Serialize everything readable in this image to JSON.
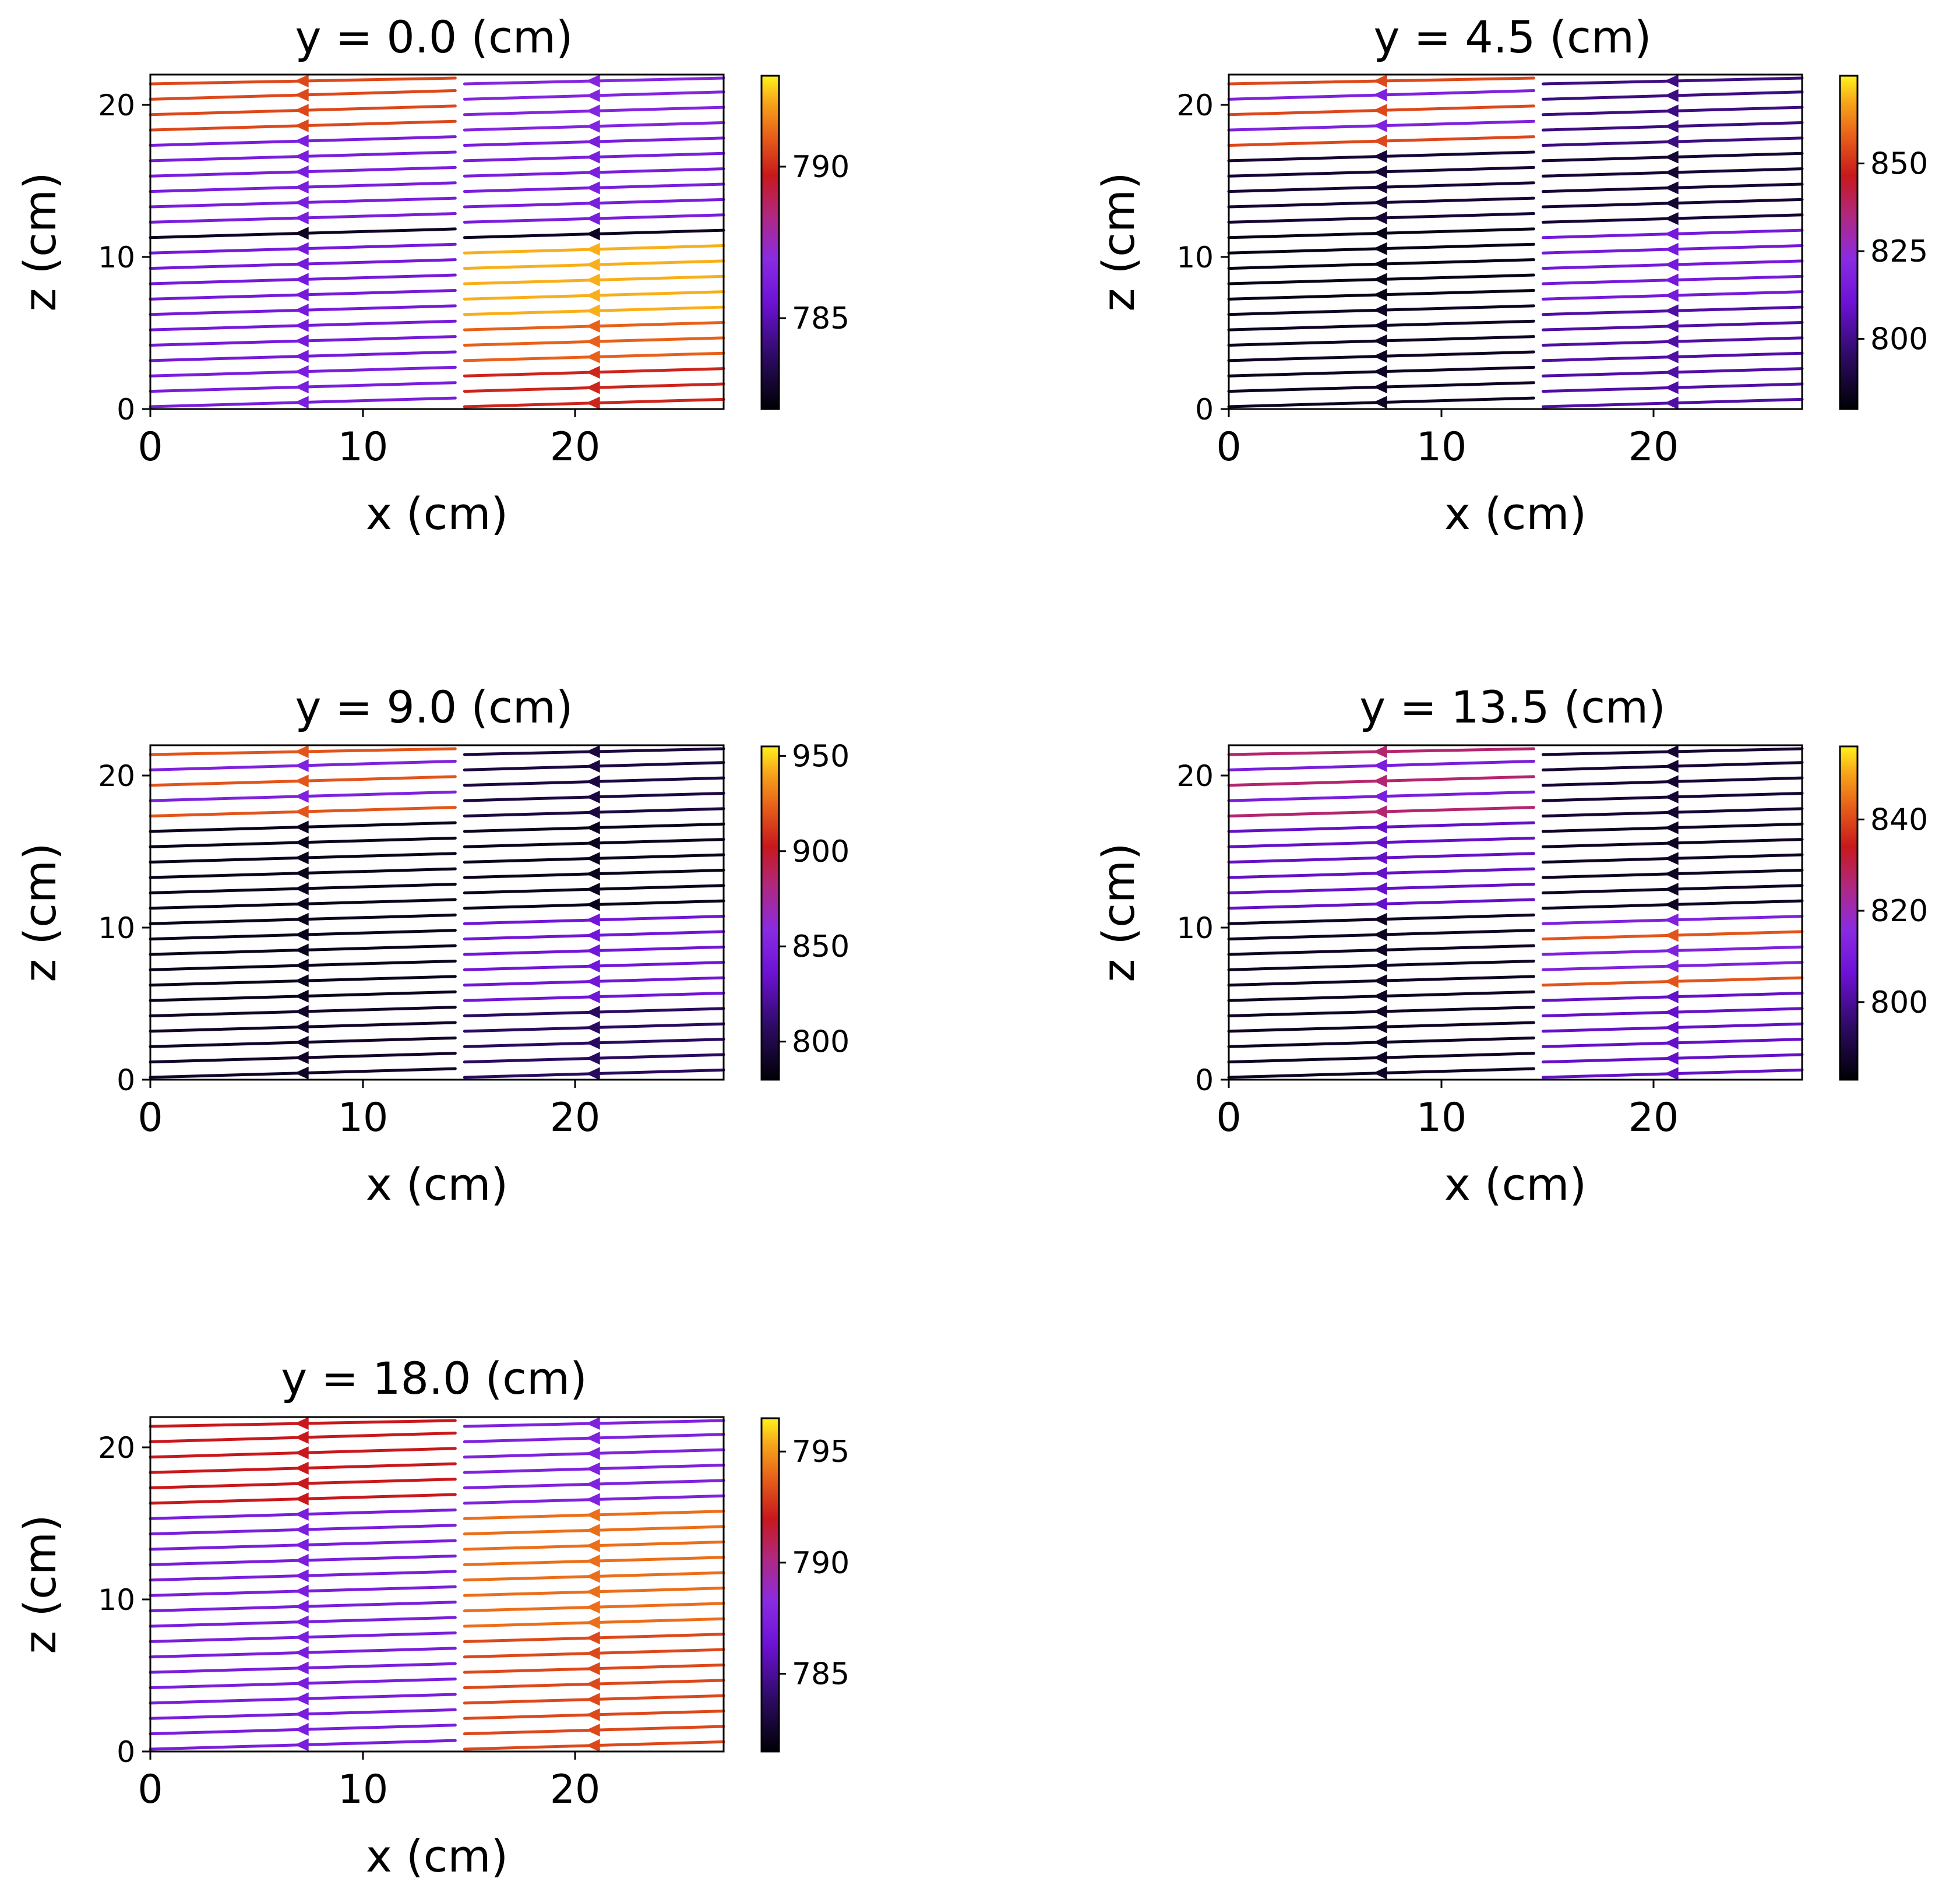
{
  "chart_data": [
    {
      "type": "streamplot",
      "title": "y = 0.0 (cm)",
      "xlabel": "x (cm)",
      "ylabel": "z (cm)",
      "xlim": [
        0,
        27
      ],
      "ylim": [
        0,
        22
      ],
      "xticks": [
        "0",
        "10",
        "20"
      ],
      "yticks": [
        "0",
        "10",
        "20"
      ],
      "colorbar": {
        "min": 782,
        "max": 793,
        "ticks": [
          "785",
          "790"
        ]
      },
      "flow_direction": "right-to-left",
      "streamline_count": 22,
      "color_trend": "yellow/orange bands at right, purple mid, dark near z = 12"
    },
    {
      "type": "streamplot",
      "title": "y = 4.5 (cm)",
      "xlabel": "x (cm)",
      "ylabel": "z (cm)",
      "xlim": [
        0,
        27
      ],
      "ylim": [
        0,
        22
      ],
      "xticks": [
        "0",
        "10",
        "20"
      ],
      "yticks": [
        "0",
        "10",
        "20"
      ],
      "colorbar": {
        "min": 780,
        "max": 875,
        "ticks": [
          "800",
          "825",
          "850"
        ]
      },
      "flow_direction": "right-to-left",
      "streamline_count": 22,
      "color_trend": "mostly dark with purple bands, orange streak near top"
    },
    {
      "type": "streamplot",
      "title": "y = 9.0 (cm)",
      "xlabel": "x (cm)",
      "ylabel": "z (cm)",
      "xlim": [
        0,
        27
      ],
      "ylim": [
        0,
        22
      ],
      "xticks": [
        "0",
        "10",
        "20"
      ],
      "yticks": [
        "0",
        "10",
        "20"
      ],
      "colorbar": {
        "min": 780,
        "max": 955,
        "ticks": [
          "800",
          "850",
          "900",
          "950"
        ]
      },
      "flow_direction": "right-to-left",
      "streamline_count": 22,
      "color_trend": "dark lower half, purple with orange streaks near top"
    },
    {
      "type": "streamplot",
      "title": "y = 13.5 (cm)",
      "xlabel": "x (cm)",
      "ylabel": "z (cm)",
      "xlim": [
        0,
        27
      ],
      "ylim": [
        0,
        22
      ],
      "xticks": [
        "0",
        "10",
        "20"
      ],
      "yticks": [
        "0",
        "10",
        "20"
      ],
      "colorbar": {
        "min": 783,
        "max": 856,
        "ticks": [
          "800",
          "820",
          "840"
        ]
      },
      "flow_direction": "right-to-left",
      "streamline_count": 22,
      "color_trend": "mostly dark with purple, orange streaks near center"
    },
    {
      "type": "streamplot",
      "title": "y = 18.0 (cm)",
      "xlabel": "x (cm)",
      "ylabel": "z (cm)",
      "xlim": [
        0,
        27
      ],
      "ylim": [
        0,
        22
      ],
      "xticks": [
        "0",
        "10",
        "20"
      ],
      "yticks": [
        "0",
        "10",
        "20"
      ],
      "colorbar": {
        "min": 781.5,
        "max": 796.5,
        "ticks": [
          "785",
          "790",
          "795"
        ]
      },
      "flow_direction": "right-to-left",
      "streamline_count": 22,
      "color_trend": "yellow/orange bands at right, red at top left, purple elsewhere"
    }
  ],
  "colormap": [
    "#000004",
    "#1b0c41",
    "#4a0c6b",
    "#7b1fa2",
    "#8a2be2",
    "#b5367a",
    "#c4161c",
    "#e1501a",
    "#f2921b",
    "#fde725"
  ]
}
